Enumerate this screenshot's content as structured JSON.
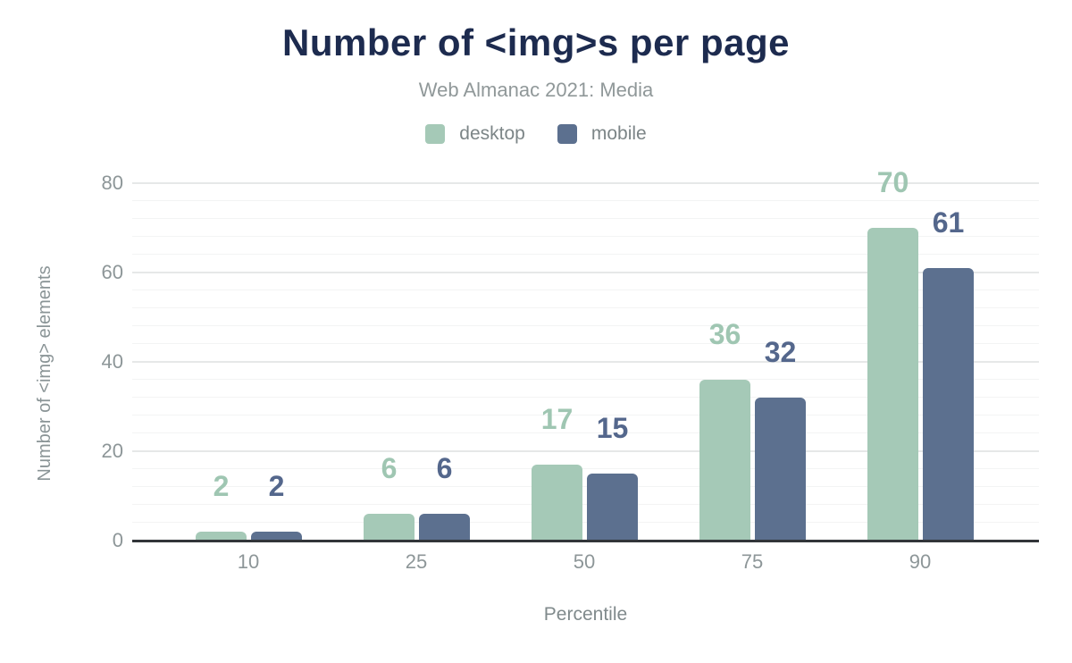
{
  "header": {
    "title": "Number of <img>s per page",
    "subtitle": "Web Almanac 2021: Media"
  },
  "legend": {
    "items": [
      {
        "label": "desktop",
        "color": "#a5c9b7"
      },
      {
        "label": "mobile",
        "color": "#5c708f"
      }
    ]
  },
  "colors": {
    "title": "#1d2b4f",
    "subtitle": "#909899",
    "axis_line": "#323539",
    "tick_text": "#8d9698",
    "major_grid": "#e6e8e8",
    "minor_grid": "#f3f4f4"
  },
  "chart_data": {
    "type": "bar",
    "title": "Number of <img>s per page",
    "subtitle": "Web Almanac 2021: Media",
    "categories": [
      "10",
      "25",
      "50",
      "75",
      "90"
    ],
    "series": [
      {
        "name": "desktop",
        "color": "#a5c9b7",
        "label_color": "#9fc6b2",
        "values": [
          2,
          6,
          17,
          36,
          70
        ]
      },
      {
        "name": "mobile",
        "color": "#5c708f",
        "label_color": "#54678c",
        "values": [
          2,
          6,
          15,
          32,
          61
        ]
      }
    ],
    "xlabel": "Percentile",
    "ylabel": "Number of <img> elements",
    "ylim": [
      0,
      80
    ],
    "yticks": [
      0,
      20,
      40,
      60,
      80
    ],
    "minor_tick_step": 4,
    "grid": true,
    "legend_position": "top",
    "value_labels": true
  }
}
